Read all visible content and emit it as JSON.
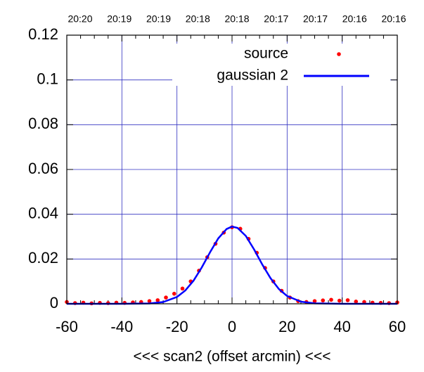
{
  "chart_data": {
    "type": "scatter_line",
    "xlabel": "<<< scan2 (offset arcmin) <<<",
    "top_labels": [
      "20:20",
      "20:19",
      "20:19",
      "20:18",
      "20:18",
      "20:17",
      "20:17",
      "20:16",
      "20:16"
    ],
    "xlim": [
      -60,
      60
    ],
    "xticks": [
      -60,
      -40,
      -20,
      0,
      20,
      40,
      60
    ],
    "ylim": [
      0,
      0.12
    ],
    "yticks": [
      0,
      0.02,
      0.04,
      0.06,
      0.08,
      0.1,
      0.12
    ],
    "grid": true,
    "legend": "top-right",
    "series": [
      {
        "name": "source",
        "color": "#ff0000",
        "style": "points",
        "x": [
          -60,
          -57,
          -54,
          -51,
          -48,
          -45,
          -42,
          -39,
          -36,
          -33,
          -30,
          -27,
          -24,
          -21,
          -18,
          -15,
          -12,
          -9,
          -6,
          -3,
          0,
          3,
          6,
          9,
          12,
          15,
          18,
          21,
          24,
          27,
          30,
          33,
          36,
          39,
          42,
          45,
          48,
          51,
          54,
          57,
          60
        ],
        "values": [
          0.0008,
          0.0003,
          0.0005,
          0.0002,
          0.0004,
          0.0003,
          0.0005,
          0.0004,
          0.0006,
          0.0008,
          0.0012,
          0.0016,
          0.0028,
          0.0045,
          0.0068,
          0.01,
          0.0148,
          0.0208,
          0.0268,
          0.0318,
          0.0342,
          0.0335,
          0.029,
          0.0228,
          0.016,
          0.01,
          0.0058,
          0.0028,
          0.0012,
          0.0008,
          0.0012,
          0.0015,
          0.0018,
          0.0014,
          0.0016,
          0.001,
          0.0008,
          0.0005,
          0.0004,
          0.0003,
          0.0006
        ]
      },
      {
        "name": "gaussian 2",
        "color": "#0000ff",
        "style": "line",
        "x": [
          -60,
          -40,
          -30,
          -25,
          -20,
          -17,
          -14,
          -11,
          -8,
          -5,
          -2,
          0,
          2,
          5,
          8,
          11,
          14,
          17,
          20,
          25,
          30,
          40,
          60
        ],
        "values": [
          0,
          0,
          0.00015,
          0.00079,
          0.00304,
          0.0059,
          0.0103,
          0.0162,
          0.023,
          0.0292,
          0.0334,
          0.0345,
          0.0339,
          0.0303,
          0.0243,
          0.0175,
          0.0114,
          0.0066,
          0.0035,
          0.00094,
          0.00019,
          0,
          0
        ]
      }
    ]
  }
}
